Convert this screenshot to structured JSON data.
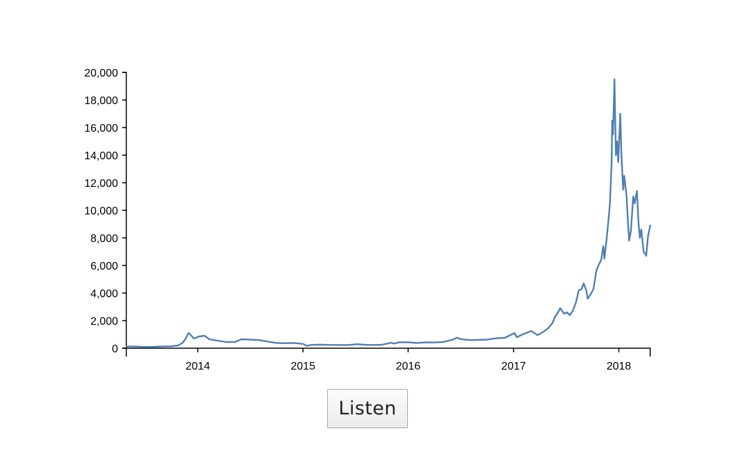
{
  "button": {
    "label": "Listen"
  },
  "chart_data": {
    "type": "line",
    "title": "",
    "xlabel": "",
    "ylabel": "",
    "color": "#4f7fb1",
    "xlim": [
      "2013-04-28",
      "2018-04-20"
    ],
    "ylim": [
      0,
      20000
    ],
    "x_ticks": [
      "2014",
      "2015",
      "2016",
      "2017",
      "2018"
    ],
    "y_ticks": [
      "0",
      "2,000",
      "4,000",
      "6,000",
      "8,000",
      "10,000",
      "12,000",
      "14,000",
      "16,000",
      "18,000",
      "20,000"
    ],
    "grid": false,
    "legend": "none",
    "series": [
      {
        "x": [
          "2013-04-28",
          "2013-06-01",
          "2013-07-01",
          "2013-08-01",
          "2013-09-01",
          "2013-10-01",
          "2013-10-25",
          "2013-11-10",
          "2013-11-20",
          "2013-11-30",
          "2013-12-06",
          "2013-12-18",
          "2013-12-25",
          "2014-01-05",
          "2014-01-25",
          "2014-02-10",
          "2014-02-28",
          "2014-03-25",
          "2014-04-10",
          "2014-05-10",
          "2014-06-01",
          "2014-07-01",
          "2014-08-01",
          "2014-09-01",
          "2014-10-01",
          "2014-11-01",
          "2014-12-01",
          "2015-01-01",
          "2015-01-14",
          "2015-02-01",
          "2015-03-01",
          "2015-04-01",
          "2015-05-01",
          "2015-06-01",
          "2015-07-10",
          "2015-08-01",
          "2015-09-01",
          "2015-10-01",
          "2015-11-04",
          "2015-11-12",
          "2015-12-01",
          "2016-01-01",
          "2016-02-01",
          "2016-03-01",
          "2016-04-01",
          "2016-05-01",
          "2016-06-01",
          "2016-06-18",
          "2016-07-01",
          "2016-08-01",
          "2016-09-01",
          "2016-10-01",
          "2016-11-01",
          "2016-12-01",
          "2017-01-04",
          "2017-01-12",
          "2017-02-01",
          "2017-03-03",
          "2017-03-25",
          "2017-04-15",
          "2017-05-01",
          "2017-05-15",
          "2017-05-25",
          "2017-06-01",
          "2017-06-12",
          "2017-06-25",
          "2017-07-05",
          "2017-07-15",
          "2017-07-25",
          "2017-08-05",
          "2017-08-15",
          "2017-08-25",
          "2017-09-01",
          "2017-09-10",
          "2017-09-15",
          "2017-09-25",
          "2017-10-05",
          "2017-10-15",
          "2017-10-22",
          "2017-11-01",
          "2017-11-08",
          "2017-11-12",
          "2017-11-20",
          "2017-11-28",
          "2017-12-01",
          "2017-12-07",
          "2017-12-09",
          "2017-12-12",
          "2017-12-17",
          "2017-12-20",
          "2017-12-22",
          "2017-12-26",
          "2017-12-30",
          "2018-01-06",
          "2018-01-10",
          "2018-01-16",
          "2018-01-20",
          "2018-01-28",
          "2018-02-02",
          "2018-02-06",
          "2018-02-12",
          "2018-02-20",
          "2018-02-25",
          "2018-03-05",
          "2018-03-10",
          "2018-03-15",
          "2018-03-20",
          "2018-03-28",
          "2018-04-01",
          "2018-04-06",
          "2018-04-12",
          "2018-04-20"
        ],
        "values": [
          135,
          120,
          90,
          100,
          130,
          140,
          200,
          400,
          700,
          1100,
          1000,
          700,
          750,
          850,
          900,
          650,
          580,
          500,
          450,
          450,
          650,
          620,
          590,
          480,
          380,
          360,
          380,
          310,
          180,
          240,
          260,
          240,
          235,
          225,
          290,
          250,
          235,
          250,
          400,
          330,
          430,
          430,
          380,
          420,
          415,
          450,
          600,
          760,
          660,
          590,
          600,
          620,
          720,
          750,
          1100,
          800,
          1000,
          1250,
          950,
          1200,
          1450,
          1800,
          2300,
          2500,
          2900,
          2500,
          2600,
          2400,
          2700,
          3300,
          4200,
          4300,
          4700,
          4200,
          3600,
          3900,
          4300,
          5600,
          6000,
          6400,
          7400,
          6500,
          8000,
          9700,
          10500,
          13500,
          16500,
          15500,
          19500,
          16000,
          14000,
          15000,
          13500,
          17000,
          14000,
          11500,
          12500,
          11000,
          9000,
          7800,
          8500,
          11000,
          10500,
          11400,
          9200,
          8000,
          8600,
          7000,
          6900,
          6700,
          8100,
          8900
        ]
      }
    ]
  }
}
